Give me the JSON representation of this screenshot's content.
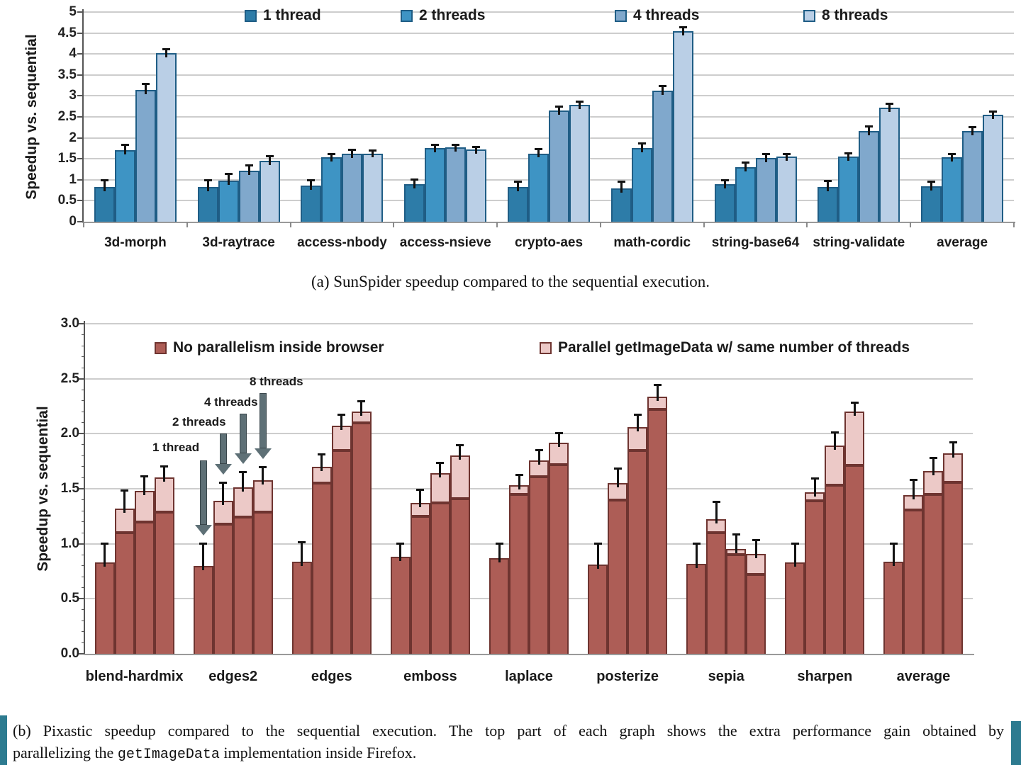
{
  "figure": {
    "caption_a": "(a) SunSpider speedup compared to the sequential execution.",
    "caption_b": {
      "line1": "(b) Pixastic speedup compared to the sequential execution. The top part of each graph shows the extra performance gain obtained by",
      "line2_pre": "parallelizing the ",
      "line2_code": "getImageData",
      "line2_post": " implementation inside Firefox."
    },
    "accent_color": "#2d7b90"
  },
  "chart_data": [
    {
      "id": "sunspider",
      "type": "bar",
      "title": "SunSpider speedup compared to the sequential execution",
      "ylabel": "Speedup vs. sequential",
      "ylim": [
        0,
        5
      ],
      "ytick_step": 0.5,
      "ytick_decimals": "auto",
      "grid": true,
      "legend_position": "top",
      "bar_border_color": "#1f5d85",
      "categories": [
        "3d-morph",
        "3d-raytrace",
        "access-nbody",
        "access-nsieve",
        "crypto-aes",
        "math-cordic",
        "string-base64",
        "string-validate",
        "average"
      ],
      "series": [
        {
          "name": "1 thread",
          "color": "#2d7ca8",
          "values": [
            0.82,
            0.83,
            0.86,
            0.9,
            0.83,
            0.8,
            0.9,
            0.82,
            0.85
          ],
          "errors": [
            0.16,
            0.15,
            0.12,
            0.1,
            0.12,
            0.14,
            0.08,
            0.14,
            0.1
          ]
        },
        {
          "name": "2 threads",
          "color": "#3e94c4",
          "values": [
            1.7,
            0.98,
            1.53,
            1.76,
            1.63,
            1.76,
            1.3,
            1.55,
            1.53
          ],
          "errors": [
            0.13,
            0.15,
            0.08,
            0.06,
            0.1,
            0.1,
            0.1,
            0.08,
            0.08
          ]
        },
        {
          "name": "4 threads",
          "color": "#80a8cc",
          "values": [
            3.15,
            1.22,
            1.63,
            1.78,
            2.65,
            3.13,
            1.52,
            2.17,
            2.17
          ],
          "errors": [
            0.12,
            0.12,
            0.08,
            0.05,
            0.08,
            0.1,
            0.08,
            0.1,
            0.07
          ]
        },
        {
          "name": "8 threads",
          "color": "#bacfe6",
          "values": [
            4.02,
            1.46,
            1.63,
            1.72,
            2.78,
            4.55,
            1.56,
            2.72,
            2.55
          ],
          "errors": [
            0.08,
            0.1,
            0.06,
            0.06,
            0.07,
            0.08,
            0.05,
            0.08,
            0.06
          ]
        }
      ]
    },
    {
      "id": "pixastic",
      "type": "stacked-bar",
      "title": "Pixastic speedup compared to the sequential execution",
      "ylabel": "Speedup  vs. sequential",
      "ylim": [
        0,
        3
      ],
      "ytick_step": 0.5,
      "ytick_decimals": 1,
      "grid": true,
      "legend_position": "top",
      "bars_per_category": [
        "1 thread",
        "2 threads",
        "4 threads",
        "8 threads"
      ],
      "categories": [
        "blend-hardmix",
        "edges2",
        "edges",
        "emboss",
        "laplace",
        "posterize",
        "sepia",
        "sharpen",
        "average"
      ],
      "series": [
        {
          "name": "No parallelism inside browser",
          "color": "#ad5d56",
          "border": "#6e3430",
          "values": [
            [
              0.83,
              1.1,
              1.2,
              1.29
            ],
            [
              0.8,
              1.18,
              1.24,
              1.29
            ],
            [
              0.84,
              1.55,
              1.85,
              2.1
            ],
            [
              0.88,
              1.25,
              1.37,
              1.41
            ],
            [
              0.87,
              1.45,
              1.61,
              1.72
            ],
            [
              0.81,
              1.4,
              1.85,
              2.22
            ],
            [
              0.82,
              1.1,
              0.9,
              0.72
            ],
            [
              0.83,
              1.39,
              1.53,
              1.71
            ],
            [
              0.84,
              1.31,
              1.45,
              1.56
            ]
          ]
        },
        {
          "name": "Parallel getImageData w/ same number of threads",
          "color": "#ecc9c7",
          "border": "#6e3430",
          "values": [
            [
              0,
              0.22,
              0.28,
              0.31
            ],
            [
              0,
              0.21,
              0.27,
              0.29
            ],
            [
              0,
              0.15,
              0.22,
              0.1
            ],
            [
              0,
              0.12,
              0.27,
              0.39
            ],
            [
              0,
              0.08,
              0.15,
              0.2
            ],
            [
              0,
              0.15,
              0.21,
              0.12
            ],
            [
              0,
              0.12,
              0.05,
              0.19
            ],
            [
              0,
              0.08,
              0.36,
              0.49
            ],
            [
              0,
              0.13,
              0.21,
              0.26
            ]
          ]
        }
      ],
      "errors": [
        [
          0.17,
          0.16,
          0.13,
          0.1
        ],
        [
          0.2,
          0.16,
          0.14,
          0.11
        ],
        [
          0.17,
          0.11,
          0.1,
          0.09
        ],
        [
          0.12,
          0.12,
          0.09,
          0.09
        ],
        [
          0.13,
          0.09,
          0.09,
          0.08
        ],
        [
          0.19,
          0.13,
          0.11,
          0.1
        ],
        [
          0.18,
          0.16,
          0.13,
          0.12
        ],
        [
          0.17,
          0.12,
          0.12,
          0.08
        ],
        [
          0.16,
          0.14,
          0.12,
          0.1
        ]
      ],
      "annotations": [
        {
          "label": "1 thread",
          "category": "edges2",
          "bar_index": 0
        },
        {
          "label": "2 threads",
          "category": "edges2",
          "bar_index": 1
        },
        {
          "label": "4 threads",
          "category": "edges2",
          "bar_index": 2
        },
        {
          "label": "8 threads",
          "category": "edges2",
          "bar_index": 3
        }
      ]
    }
  ]
}
